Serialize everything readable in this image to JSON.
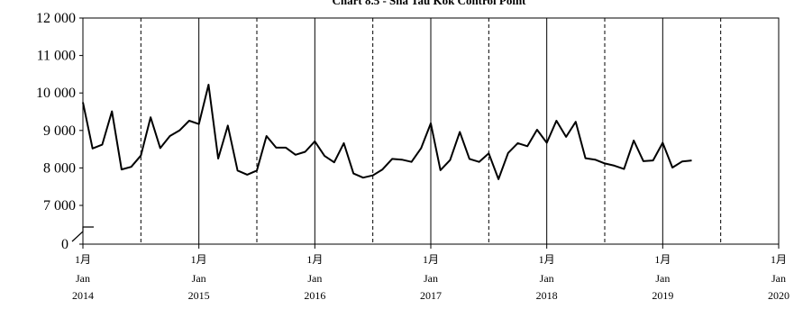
{
  "chart_data": {
    "type": "line",
    "title": "Chart 8.5 -  Sha Tau Kok Control Point",
    "xlabel": "",
    "ylabel": "",
    "ylim": [
      7000,
      12000
    ],
    "y_break_zero_label": "0",
    "yticks": [
      7000,
      8000,
      9000,
      10000,
      11000,
      12000
    ],
    "ytick_labels": [
      "7 000",
      "8 000",
      "9 000",
      "10 000",
      "11 000",
      "12 000"
    ],
    "x_range_months": [
      "2014-01",
      "2020-01"
    ],
    "year_ticks": [
      {
        "month": "1月",
        "label": "Jan",
        "year": "2014"
      },
      {
        "month": "1月",
        "label": "Jan",
        "year": "2015"
      },
      {
        "month": "1月",
        "label": "Jan",
        "year": "2016"
      },
      {
        "month": "1月",
        "label": "Jan",
        "year": "2017"
      },
      {
        "month": "1月",
        "label": "Jan",
        "year": "2018"
      },
      {
        "month": "1月",
        "label": "Jan",
        "year": "2019"
      },
      {
        "month": "1月",
        "label": "Jan",
        "year": "2020"
      }
    ],
    "gridlines": "vertical: solid at January, dashed at July",
    "series": [
      {
        "name": "",
        "color": "#000000",
        "x": [
          "2014-01",
          "2014-02",
          "2014-03",
          "2014-04",
          "2014-05",
          "2014-06",
          "2014-07",
          "2014-08",
          "2014-09",
          "2014-10",
          "2014-11",
          "2014-12",
          "2015-01",
          "2015-02",
          "2015-03",
          "2015-04",
          "2015-05",
          "2015-06",
          "2015-07",
          "2015-08",
          "2015-09",
          "2015-10",
          "2015-11",
          "2015-12",
          "2016-01",
          "2016-02",
          "2016-03",
          "2016-04",
          "2016-05",
          "2016-06",
          "2016-07",
          "2016-08",
          "2016-09",
          "2016-10",
          "2016-11",
          "2016-12",
          "2017-01",
          "2017-02",
          "2017-03",
          "2017-04",
          "2017-05",
          "2017-06",
          "2017-07",
          "2017-08",
          "2017-09",
          "2017-10",
          "2017-11",
          "2017-12",
          "2018-01",
          "2018-02",
          "2018-03",
          "2018-04",
          "2018-05",
          "2018-06",
          "2018-07",
          "2018-08",
          "2018-09",
          "2018-10",
          "2018-11",
          "2018-12",
          "2019-01",
          "2019-02",
          "2019-03",
          "2019-04"
        ],
        "values": [
          9750,
          8520,
          8620,
          9510,
          7960,
          8030,
          8330,
          9350,
          8530,
          8850,
          9000,
          9260,
          9170,
          10220,
          8250,
          9130,
          7930,
          7820,
          7930,
          8850,
          8540,
          8540,
          8350,
          8430,
          8710,
          8320,
          8150,
          8660,
          7850,
          7740,
          7800,
          7960,
          8240,
          8220,
          8160,
          8530,
          9190,
          7940,
          8210,
          8960,
          8240,
          8160,
          8390,
          7700,
          8400,
          8660,
          8580,
          9020,
          8670,
          9260,
          8830,
          9230,
          8260,
          8220,
          8120,
          8060,
          7970,
          8730,
          8180,
          8200,
          8670,
          8010,
          8170,
          8200
        ]
      }
    ]
  }
}
